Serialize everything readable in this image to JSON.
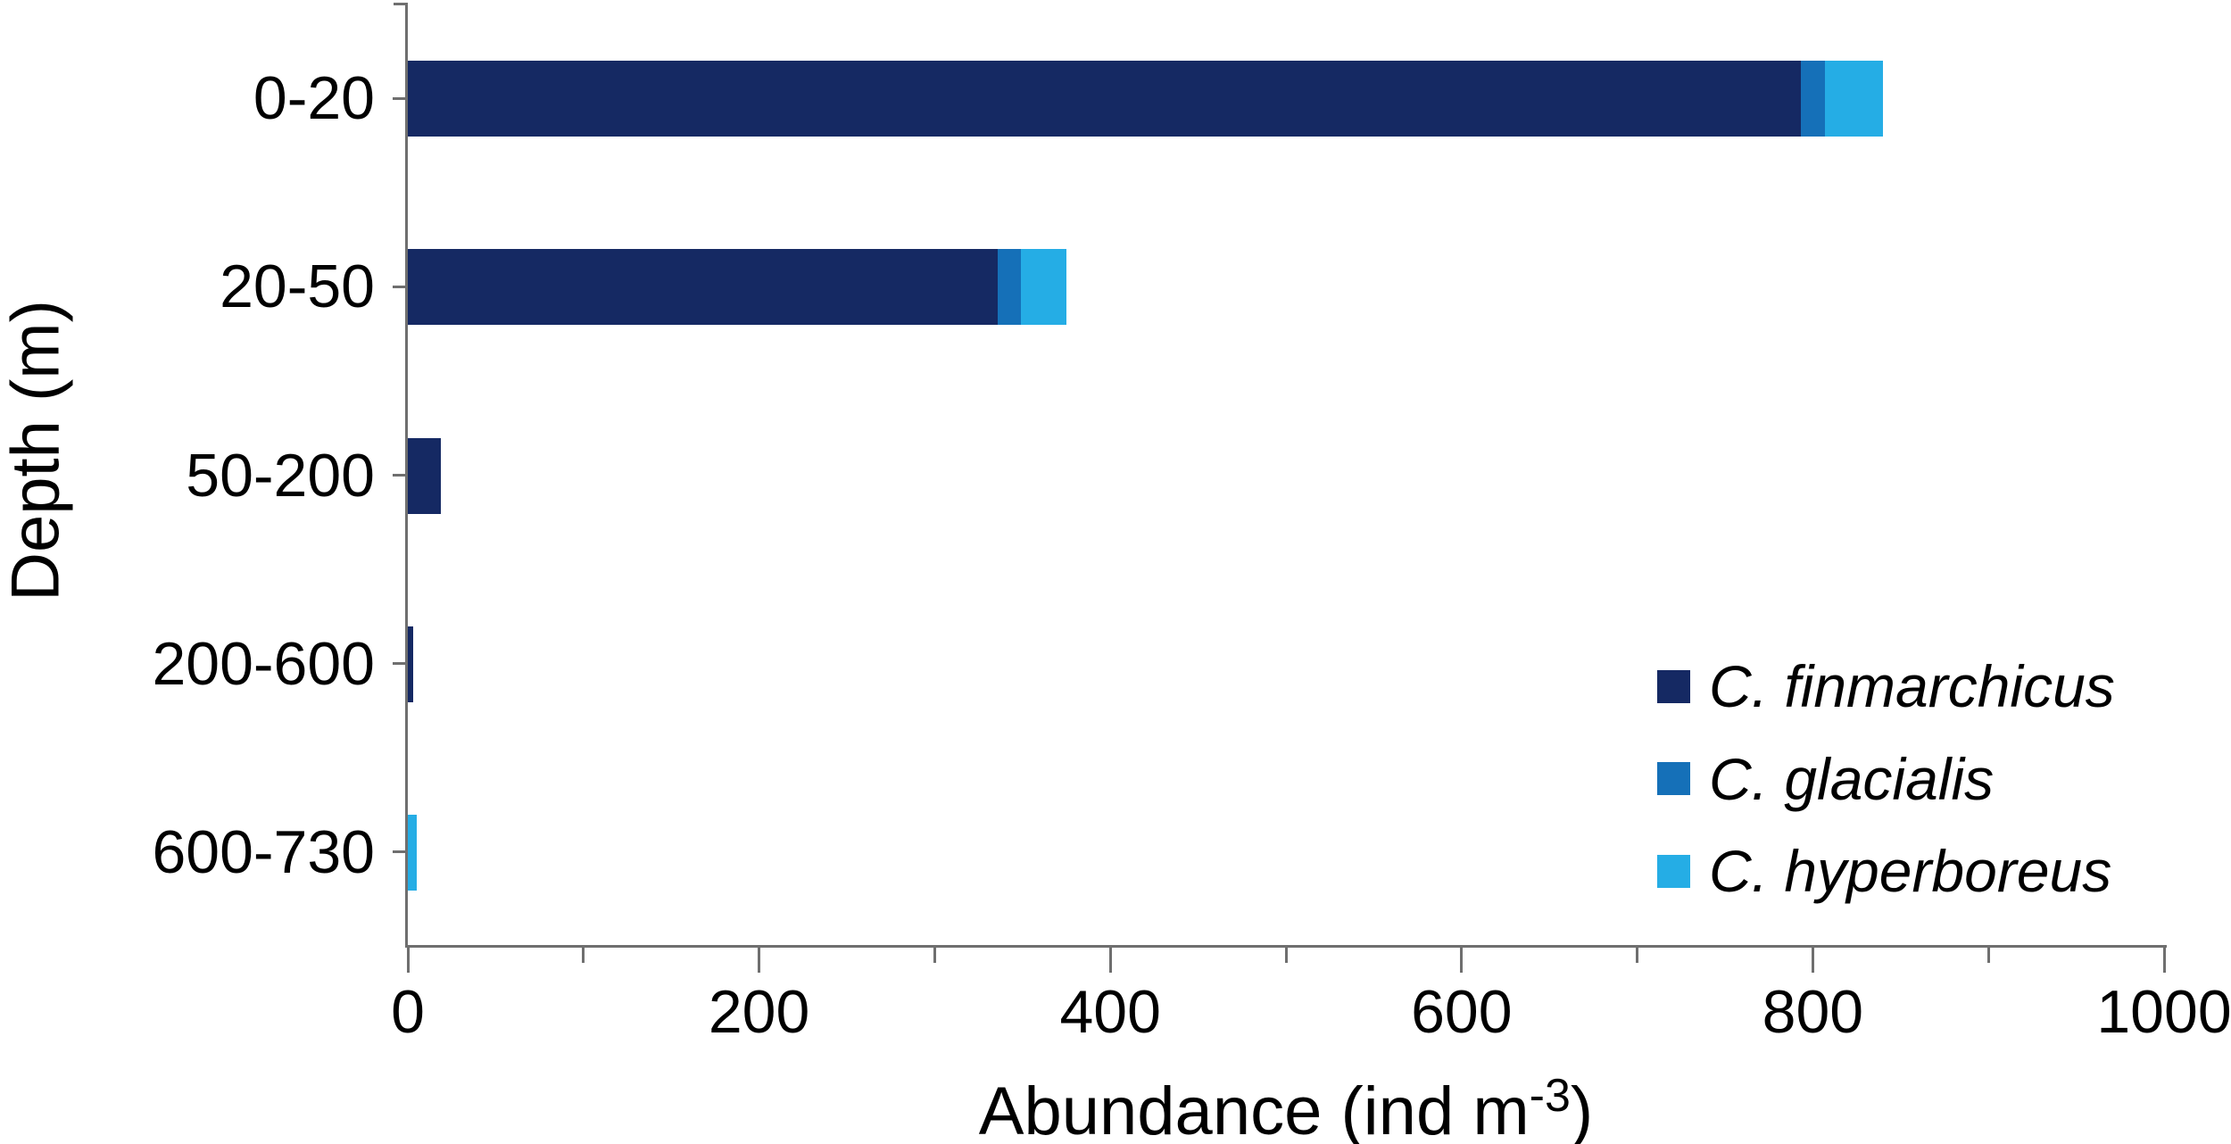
{
  "chart_data": {
    "type": "bar",
    "orientation": "horizontal",
    "stacked": true,
    "categories": [
      "0-20",
      "20-50",
      "50-200",
      "200-600",
      "600-730"
    ],
    "series": [
      {
        "name": "C. finmarchicus",
        "color": "#152963",
        "values": [
          793,
          336,
          19,
          3,
          0
        ]
      },
      {
        "name": "C. glacialis",
        "color": "#1570B8",
        "values": [
          14,
          13,
          0,
          0,
          0
        ]
      },
      {
        "name": "C. hyperboreus",
        "color": "#25ADE5",
        "values": [
          33,
          26,
          0,
          0,
          5
        ]
      }
    ],
    "xlabel": "Abundance (ind m-3)",
    "xlabel_parts": {
      "pre": "Abundance (ind m",
      "sup": "-3",
      "post": ")"
    },
    "ylabel": "Depth (m)",
    "xlim": [
      0,
      1000
    ],
    "x_tick_labels": [
      "0",
      "200",
      "400",
      "600",
      "800",
      "1000"
    ],
    "x_major_tick_step": 200,
    "x_minor_tick_step": 100,
    "grid": false,
    "legend_position": "inside-right-middle",
    "axis_color": "#6F6F6F",
    "text_color": "#000000",
    "background_color": "#FFFFFF"
  }
}
